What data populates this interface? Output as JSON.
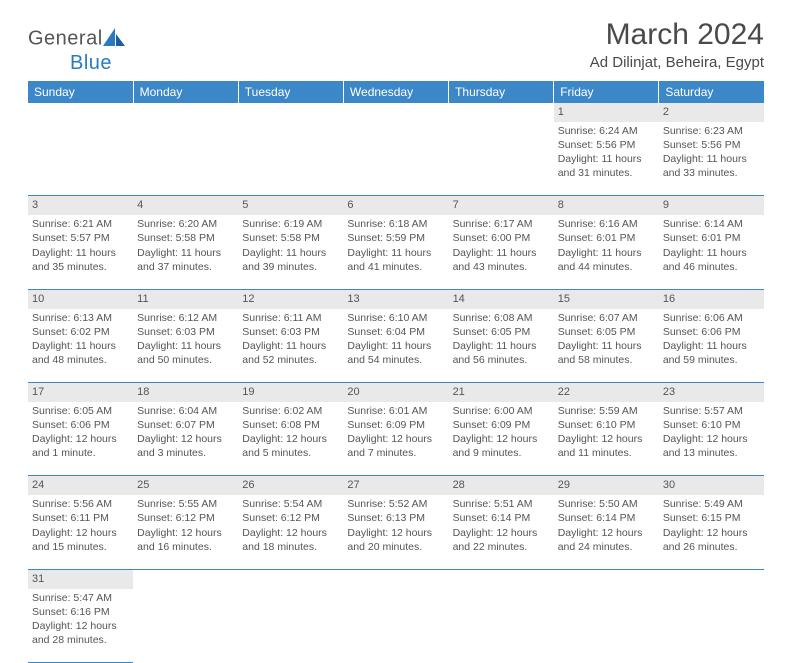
{
  "brand": {
    "name_a": "General",
    "name_b": "Blue"
  },
  "title": "March 2024",
  "location": "Ad Dilinjat, Beheira, Egypt",
  "colors": {
    "header_bg": "#3b87c8",
    "header_text": "#ffffff",
    "daynum_bg": "#e9e9e9",
    "border": "#3b87c8",
    "text": "#4a4a4a",
    "logo_blue": "#2a7ac0"
  },
  "day_headers": [
    "Sunday",
    "Monday",
    "Tuesday",
    "Wednesday",
    "Thursday",
    "Friday",
    "Saturday"
  ],
  "weeks": [
    {
      "nums": [
        "",
        "",
        "",
        "",
        "",
        "1",
        "2"
      ],
      "cells": [
        "",
        "",
        "",
        "",
        "",
        "Sunrise: 6:24 AM\nSunset: 5:56 PM\nDaylight: 11 hours and 31 minutes.",
        "Sunrise: 6:23 AM\nSunset: 5:56 PM\nDaylight: 11 hours and 33 minutes."
      ]
    },
    {
      "nums": [
        "3",
        "4",
        "5",
        "6",
        "7",
        "8",
        "9"
      ],
      "cells": [
        "Sunrise: 6:21 AM\nSunset: 5:57 PM\nDaylight: 11 hours and 35 minutes.",
        "Sunrise: 6:20 AM\nSunset: 5:58 PM\nDaylight: 11 hours and 37 minutes.",
        "Sunrise: 6:19 AM\nSunset: 5:58 PM\nDaylight: 11 hours and 39 minutes.",
        "Sunrise: 6:18 AM\nSunset: 5:59 PM\nDaylight: 11 hours and 41 minutes.",
        "Sunrise: 6:17 AM\nSunset: 6:00 PM\nDaylight: 11 hours and 43 minutes.",
        "Sunrise: 6:16 AM\nSunset: 6:01 PM\nDaylight: 11 hours and 44 minutes.",
        "Sunrise: 6:14 AM\nSunset: 6:01 PM\nDaylight: 11 hours and 46 minutes."
      ]
    },
    {
      "nums": [
        "10",
        "11",
        "12",
        "13",
        "14",
        "15",
        "16"
      ],
      "cells": [
        "Sunrise: 6:13 AM\nSunset: 6:02 PM\nDaylight: 11 hours and 48 minutes.",
        "Sunrise: 6:12 AM\nSunset: 6:03 PM\nDaylight: 11 hours and 50 minutes.",
        "Sunrise: 6:11 AM\nSunset: 6:03 PM\nDaylight: 11 hours and 52 minutes.",
        "Sunrise: 6:10 AM\nSunset: 6:04 PM\nDaylight: 11 hours and 54 minutes.",
        "Sunrise: 6:08 AM\nSunset: 6:05 PM\nDaylight: 11 hours and 56 minutes.",
        "Sunrise: 6:07 AM\nSunset: 6:05 PM\nDaylight: 11 hours and 58 minutes.",
        "Sunrise: 6:06 AM\nSunset: 6:06 PM\nDaylight: 11 hours and 59 minutes."
      ]
    },
    {
      "nums": [
        "17",
        "18",
        "19",
        "20",
        "21",
        "22",
        "23"
      ],
      "cells": [
        "Sunrise: 6:05 AM\nSunset: 6:06 PM\nDaylight: 12 hours and 1 minute.",
        "Sunrise: 6:04 AM\nSunset: 6:07 PM\nDaylight: 12 hours and 3 minutes.",
        "Sunrise: 6:02 AM\nSunset: 6:08 PM\nDaylight: 12 hours and 5 minutes.",
        "Sunrise: 6:01 AM\nSunset: 6:09 PM\nDaylight: 12 hours and 7 minutes.",
        "Sunrise: 6:00 AM\nSunset: 6:09 PM\nDaylight: 12 hours and 9 minutes.",
        "Sunrise: 5:59 AM\nSunset: 6:10 PM\nDaylight: 12 hours and 11 minutes.",
        "Sunrise: 5:57 AM\nSunset: 6:10 PM\nDaylight: 12 hours and 13 minutes."
      ]
    },
    {
      "nums": [
        "24",
        "25",
        "26",
        "27",
        "28",
        "29",
        "30"
      ],
      "cells": [
        "Sunrise: 5:56 AM\nSunset: 6:11 PM\nDaylight: 12 hours and 15 minutes.",
        "Sunrise: 5:55 AM\nSunset: 6:12 PM\nDaylight: 12 hours and 16 minutes.",
        "Sunrise: 5:54 AM\nSunset: 6:12 PM\nDaylight: 12 hours and 18 minutes.",
        "Sunrise: 5:52 AM\nSunset: 6:13 PM\nDaylight: 12 hours and 20 minutes.",
        "Sunrise: 5:51 AM\nSunset: 6:14 PM\nDaylight: 12 hours and 22 minutes.",
        "Sunrise: 5:50 AM\nSunset: 6:14 PM\nDaylight: 12 hours and 24 minutes.",
        "Sunrise: 5:49 AM\nSunset: 6:15 PM\nDaylight: 12 hours and 26 minutes."
      ]
    },
    {
      "nums": [
        "31",
        "",
        "",
        "",
        "",
        "",
        ""
      ],
      "cells": [
        "Sunrise: 5:47 AM\nSunset: 6:16 PM\nDaylight: 12 hours and 28 minutes.",
        "",
        "",
        "",
        "",
        "",
        ""
      ]
    }
  ]
}
